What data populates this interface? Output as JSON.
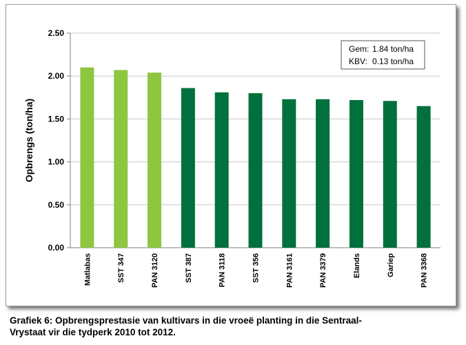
{
  "chart_data": {
    "type": "bar",
    "ylabel": "Opbrengs (ton/ha)",
    "ylim": [
      0,
      2.5
    ],
    "yticks": [
      "0.00",
      "0.50",
      "1.00",
      "1.50",
      "2.00",
      "2.50"
    ],
    "grid": true,
    "categories": [
      "Matlabas",
      "SST 347",
      "PAN 3120",
      "SST 387",
      "PAN 3118",
      "SST 356",
      "PAN 3161",
      "PAN 3379",
      "Elands",
      "Gariep",
      "PAN 3368"
    ],
    "values": [
      2.1,
      2.07,
      2.04,
      1.86,
      1.81,
      1.8,
      1.73,
      1.73,
      1.72,
      1.71,
      1.65
    ],
    "bar_colors": [
      "#8dc63f",
      "#8dc63f",
      "#8dc63f",
      "#00703c",
      "#00703c",
      "#00703c",
      "#00703c",
      "#00703c",
      "#00703c",
      "#00703c",
      "#00703c"
    ],
    "stats_box": {
      "position": "top-right",
      "lines": [
        {
          "label": "Gem:",
          "value": "1.84 ton/ha"
        },
        {
          "label": "KBV:",
          "value": "0.13 ton/ha"
        }
      ]
    }
  },
  "caption": {
    "line1": "Grafiek 6: Opbrengsprestasie van kultivars in die vroeë planting in die Sentraal-",
    "line2": "Vrystaat vir die tydperk 2010 tot 2012."
  }
}
